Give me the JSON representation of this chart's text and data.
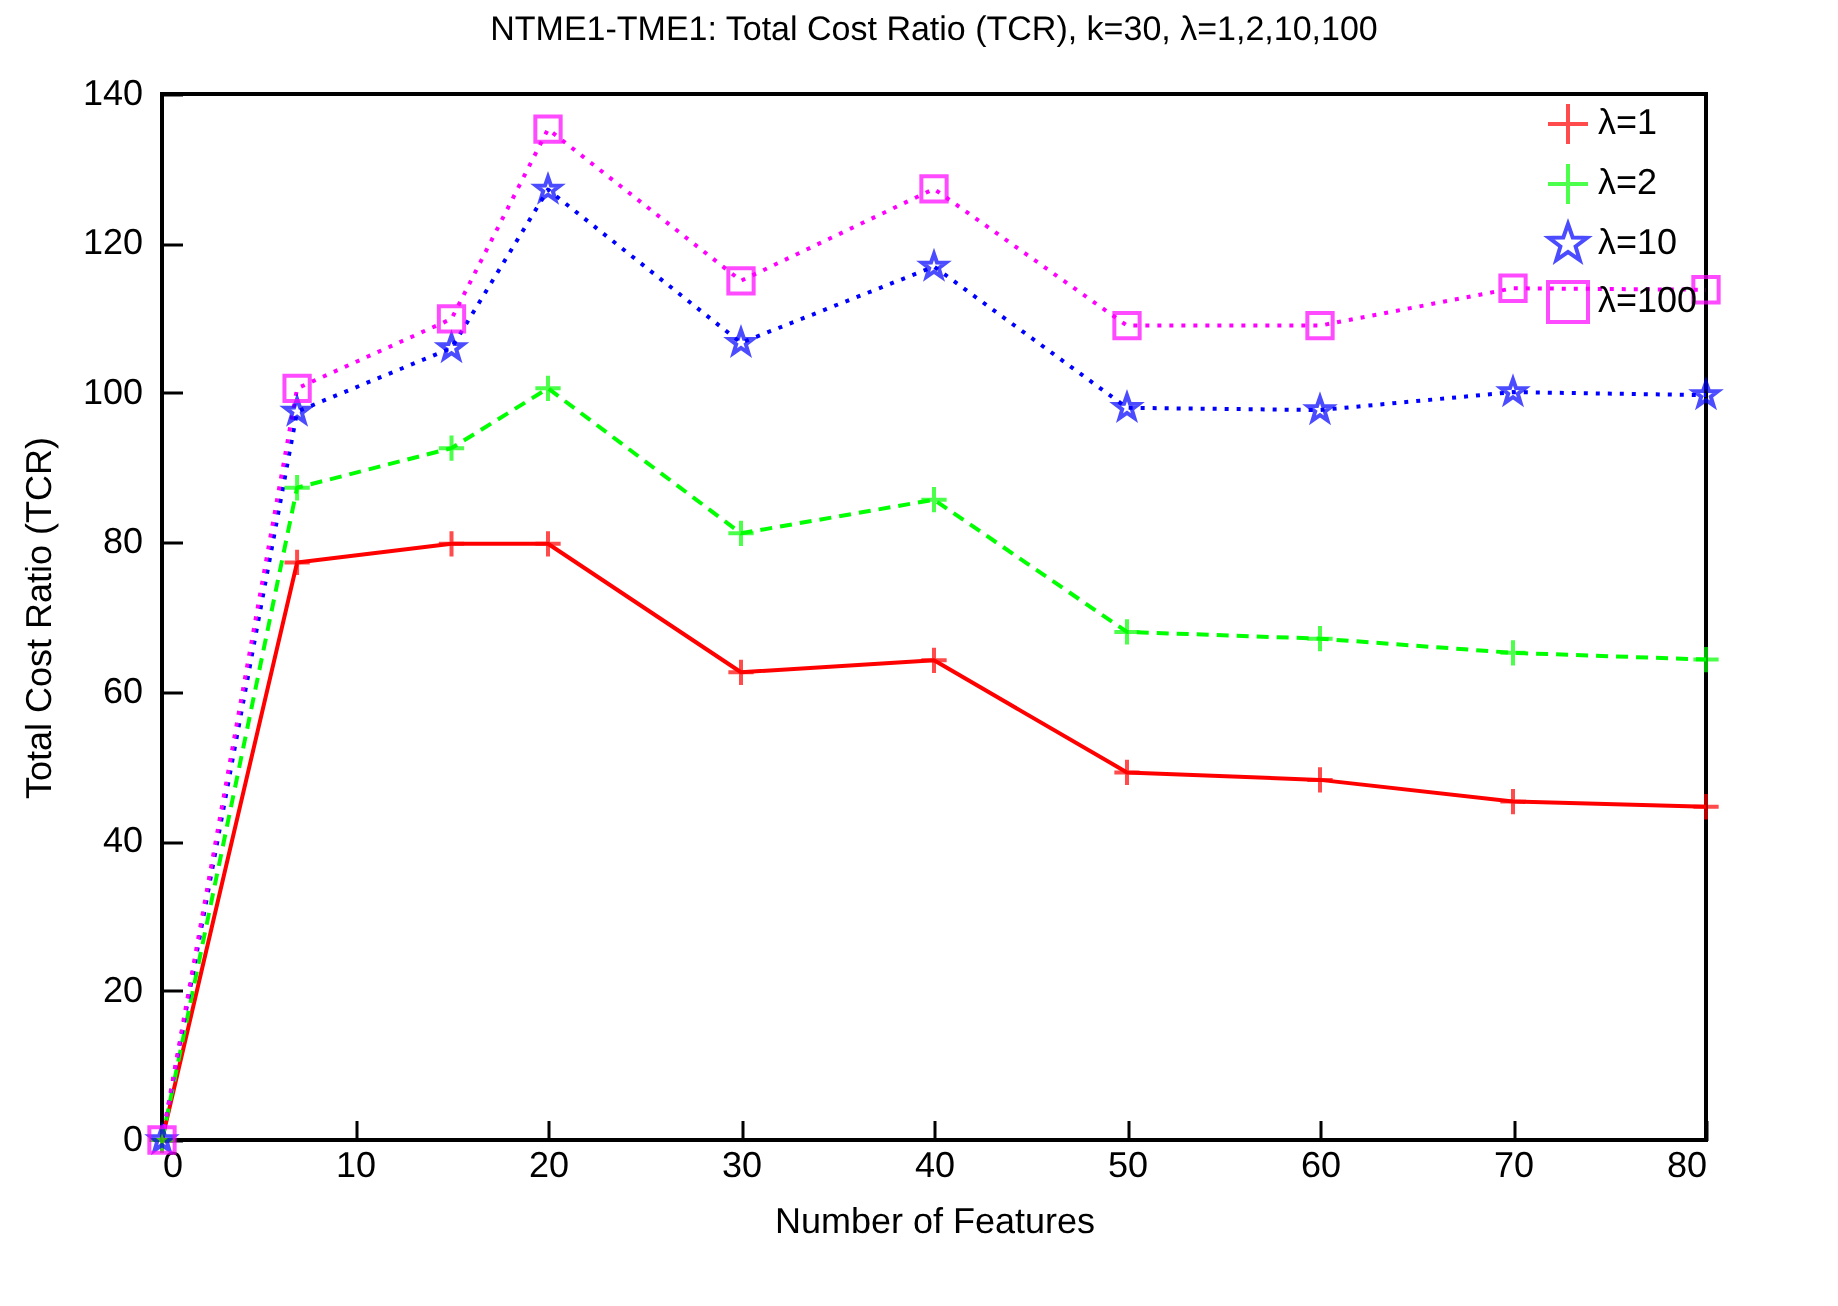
{
  "chart_data": {
    "type": "line",
    "title": "NTME1-TME1: Total Cost Ratio (TCR), k=30, λ=1,2,10,100",
    "xlabel": "Number of Features",
    "ylabel": "Total Cost Ratio (TCR)",
    "x": [
      0,
      7,
      15,
      20,
      30,
      40,
      50,
      60,
      70,
      80
    ],
    "series": [
      {
        "name": "λ=1",
        "color": "#ff0000",
        "marker": "cross",
        "line_style": "solid",
        "values": [
          0,
          77.3,
          79.8,
          79.8,
          62.6,
          64.2,
          49.2,
          48.2,
          45.3,
          44.6
        ]
      },
      {
        "name": "λ=2",
        "color": "#00ff00",
        "marker": "cross",
        "line_style": "dashed",
        "values": [
          0,
          87.3,
          92.6,
          100.6,
          81.2,
          85.7,
          68,
          67.1,
          65.2,
          64.3
        ]
      },
      {
        "name": "λ=10",
        "color": "#0000ff",
        "marker": "star",
        "line_style": "dotted",
        "values": [
          0,
          97.5,
          106,
          127.2,
          106.7,
          116.9,
          98,
          97.7,
          100.1,
          99.7
        ]
      },
      {
        "name": "λ=100",
        "color": "#ff00ff",
        "marker": "square",
        "line_style": "dotted",
        "values": [
          0,
          100.6,
          109.9,
          135.3,
          115,
          127.3,
          109,
          109,
          114,
          113.8
        ]
      }
    ],
    "xlim": [
      0,
      80
    ],
    "xticks": [
      0,
      10,
      20,
      30,
      40,
      50,
      60,
      70,
      80
    ],
    "ylim": [
      0,
      140
    ],
    "yticks": [
      0,
      20,
      40,
      60,
      80,
      100,
      120,
      140
    ],
    "grid": false,
    "legend": "top right"
  }
}
